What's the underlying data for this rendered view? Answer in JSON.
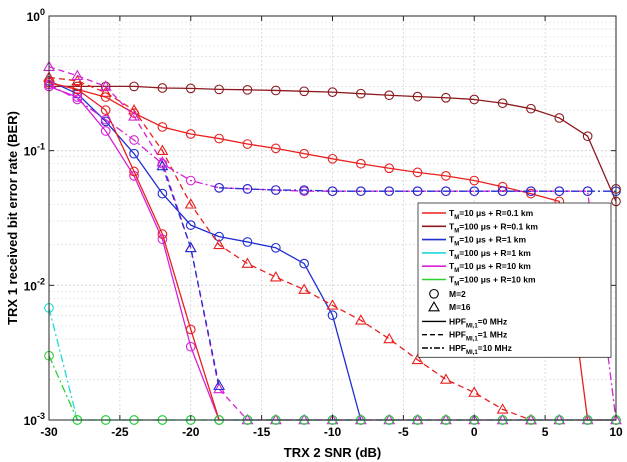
{
  "chart_data": {
    "type": "line",
    "title": "",
    "xlabel": "TRX 2 SNR (dB)",
    "ylabel": "TRX 1 received bit error rate (BER)",
    "xlim": [
      -30,
      10
    ],
    "ylim": [
      0.001,
      1
    ],
    "yscale": "log",
    "grid": true,
    "legend_placement": "center-right",
    "x_ticks": [
      -30,
      -25,
      -20,
      -15,
      -10,
      -5,
      0,
      5,
      10
    ],
    "x_tick_labels": [
      "-30",
      "-25",
      "-20",
      "-15",
      "-10",
      "-5",
      "0",
      "5",
      "10"
    ],
    "y_ticks": [
      0.001,
      0.01,
      0.1,
      1
    ],
    "y_tick_labels": [
      {
        "base": "10",
        "exp": "-3"
      },
      {
        "base": "10",
        "exp": "-2"
      },
      {
        "base": "10",
        "exp": "-1"
      },
      {
        "base": "10",
        "exp": "0"
      }
    ],
    "legend_colors": [
      {
        "main": "T",
        "sub": "M",
        "rest": "=10 μs + R=0.1 km",
        "color": "#e8201f"
      },
      {
        "main": "T",
        "sub": "M",
        "rest": "=100 μs + R=0.1 km",
        "color": "#8c1a1f"
      },
      {
        "main": "T",
        "sub": "M",
        "rest": "=10 μs + R=1 km",
        "color": "#1f2fd0"
      },
      {
        "main": "T",
        "sub": "M",
        "rest": "=100 μs + R=1 km",
        "color": "#22d8d8"
      },
      {
        "main": "T",
        "sub": "M",
        "rest": "=10 μs + R=10 km",
        "color": "#d622d6"
      },
      {
        "main": "T",
        "sub": "M",
        "rest": "=100 μs + R=10 km",
        "color": "#30d030"
      }
    ],
    "legend_markers": [
      {
        "label": "M=2",
        "marker": "circle"
      },
      {
        "label": "M=16",
        "marker": "triangle"
      }
    ],
    "legend_styles": [
      {
        "main": "HPF",
        "sub": "MI,1",
        "rest": "=0 MHz",
        "dash": "solid"
      },
      {
        "main": "HPF",
        "sub": "MI,1",
        "rest": "=1 MHz",
        "dash": "dashed"
      },
      {
        "main": "HPF",
        "sub": "MI,1",
        "rest": "=10 MHz",
        "dash": "dashdot"
      }
    ],
    "series": [
      {
        "color": "#e8201f",
        "dash": "solid",
        "marker": "circle",
        "x": [
          -30,
          -28,
          -26,
          -24,
          -22,
          -20,
          -18,
          -16,
          -14,
          -12,
          -10,
          -8,
          -6,
          -4,
          -2,
          0,
          2,
          4,
          6,
          8,
          10
        ],
        "y": [
          0.32,
          0.285,
          0.25,
          0.19,
          0.15,
          0.133,
          0.123,
          0.112,
          0.104,
          0.095,
          0.087,
          0.08,
          0.074,
          0.069,
          0.065,
          0.06,
          0.054,
          0.048,
          0.042,
          0.001,
          0.001
        ]
      },
      {
        "color": "#8c1a1f",
        "dash": "solid",
        "marker": "circle",
        "x": [
          -30,
          -28,
          -26,
          -24,
          -22,
          -20,
          -18,
          -16,
          -14,
          -12,
          -10,
          -8,
          -6,
          -4,
          -2,
          0,
          2,
          4,
          6,
          8,
          10
        ],
        "y": [
          0.3,
          0.3,
          0.3,
          0.3,
          0.292,
          0.29,
          0.285,
          0.283,
          0.28,
          0.276,
          0.272,
          0.265,
          0.258,
          0.252,
          0.247,
          0.24,
          0.225,
          0.205,
          0.175,
          0.128,
          0.042
        ]
      },
      {
        "color": "#1f2fd0",
        "dash": "solid",
        "marker": "circle",
        "x": [
          -30,
          -28,
          -26,
          -24,
          -22,
          -20,
          -18,
          -16,
          -14,
          -12,
          -10,
          -8
        ],
        "y": [
          0.33,
          0.265,
          0.165,
          0.095,
          0.048,
          0.028,
          0.023,
          0.021,
          0.019,
          0.0145,
          0.006,
          0.001
        ]
      },
      {
        "color": "#e8201f",
        "dash": "dashed",
        "marker": "triangle",
        "x": [
          -30,
          -28,
          -26,
          -24,
          -22,
          -20,
          -18,
          -16,
          -14,
          -12,
          -10,
          -8,
          -6,
          -4,
          -2,
          0,
          2,
          4
        ],
        "y": [
          0.35,
          0.33,
          0.27,
          0.2,
          0.1,
          0.04,
          0.02,
          0.0145,
          0.0115,
          0.0093,
          0.0071,
          0.0055,
          0.004,
          0.0028,
          0.002,
          0.0016,
          0.0012,
          0.001
        ]
      },
      {
        "color": "#d622d6",
        "dash": "solid",
        "marker": "circle",
        "x": [
          -30,
          -28,
          -26,
          -24,
          -22,
          -20,
          -18,
          -16,
          -14,
          -12,
          -10,
          -8,
          -6,
          -4,
          -2,
          0,
          2,
          4,
          6,
          8,
          10
        ],
        "y": [
          0.3,
          0.25,
          0.14,
          0.065,
          0.022,
          0.0035,
          0.001,
          0.001,
          0.001,
          0.001,
          0.001,
          0.001,
          0.001,
          0.001,
          0.001,
          0.001,
          0.001,
          0.001,
          0.001,
          0.001,
          0.001
        ]
      },
      {
        "color": "#e8201f",
        "dash": "solid",
        "marker": "circle",
        "x": [
          -30,
          -28,
          -26,
          -24,
          -22,
          -20,
          -18
        ],
        "y": [
          0.32,
          0.285,
          0.2,
          0.07,
          0.024,
          0.0047,
          0.001
        ]
      },
      {
        "color": "#d622d6",
        "dash": "dashed",
        "marker": "triangle",
        "x": [
          -30,
          -28,
          -26,
          -24,
          -22,
          -20,
          -18,
          -16,
          -14,
          -12,
          -10,
          -8,
          -6,
          -4,
          -2,
          0,
          2,
          4,
          6,
          8,
          10
        ],
        "y": [
          0.42,
          0.36,
          0.3,
          0.18,
          0.082,
          0.019,
          0.0017,
          0.001,
          0.001,
          0.001,
          0.001,
          0.001,
          0.001,
          0.001,
          0.001,
          0.001,
          0.001,
          0.001,
          0.001,
          0.001,
          0.001
        ]
      },
      {
        "color": "#1f2fd0",
        "dash": "dashed",
        "marker": "triangle",
        "x": [
          -22,
          -20,
          -18
        ],
        "y": [
          0.077,
          0.019,
          0.0018
        ]
      },
      {
        "color": "#d622d6",
        "dash": "dashdot",
        "marker": "circle",
        "x": [
          -30,
          -28,
          -26,
          -24,
          -22,
          -20,
          -18,
          -16,
          -14,
          -12,
          -10,
          -8,
          -6,
          -4,
          -2,
          0,
          2,
          4,
          6,
          8,
          10
        ],
        "y": [
          0.31,
          0.24,
          0.17,
          0.12,
          0.08,
          0.06,
          0.053,
          0.052,
          0.051,
          0.05,
          0.05,
          0.05,
          0.05,
          0.05,
          0.05,
          0.05,
          0.05,
          0.05,
          0.05,
          0.05,
          0.001
        ]
      },
      {
        "color": "#1f2fd0",
        "dash": "dashdot",
        "marker": "circle",
        "x": [
          -18,
          -16,
          -14,
          -12,
          -10,
          -8,
          -6,
          -4,
          -2,
          0,
          2,
          4,
          6,
          8,
          10
        ],
        "y": [
          0.053,
          0.052,
          0.051,
          0.051,
          0.05,
          0.05,
          0.05,
          0.05,
          0.05,
          0.05,
          0.05,
          0.05,
          0.05,
          0.05,
          0.05
        ]
      },
      {
        "color": "#8c1a1f",
        "dash": "dashdot",
        "marker": "circle",
        "x": [
          10
        ],
        "y": [
          0.052
        ]
      },
      {
        "color": "#22d8d8",
        "dash": "dashdot",
        "marker": "circle",
        "x": [
          -30,
          -28,
          -26,
          -24,
          -22,
          -20,
          -18,
          -16,
          -14,
          -12,
          -10,
          -8,
          -6,
          -4,
          -2,
          0,
          2,
          4,
          6,
          8,
          10
        ],
        "y": [
          0.0068,
          0.001,
          0.001,
          0.001,
          0.001,
          0.001,
          0.001,
          0.001,
          0.001,
          0.001,
          0.001,
          0.001,
          0.001,
          0.001,
          0.001,
          0.001,
          0.001,
          0.001,
          0.001,
          0.001,
          0.001
        ]
      },
      {
        "color": "#30d030",
        "dash": "dashdot",
        "marker": "circle",
        "x": [
          -30,
          -28,
          -26,
          -24,
          -22,
          -20,
          -18,
          -16,
          -14,
          -12,
          -10,
          -8,
          -6,
          -4,
          -2,
          0,
          2,
          4,
          6,
          8,
          10
        ],
        "y": [
          0.003,
          0.001,
          0.001,
          0.001,
          0.001,
          0.001,
          0.001,
          0.001,
          0.001,
          0.001,
          0.001,
          0.001,
          0.001,
          0.001,
          0.001,
          0.001,
          0.001,
          0.001,
          0.001,
          0.001,
          0.001
        ]
      }
    ]
  }
}
